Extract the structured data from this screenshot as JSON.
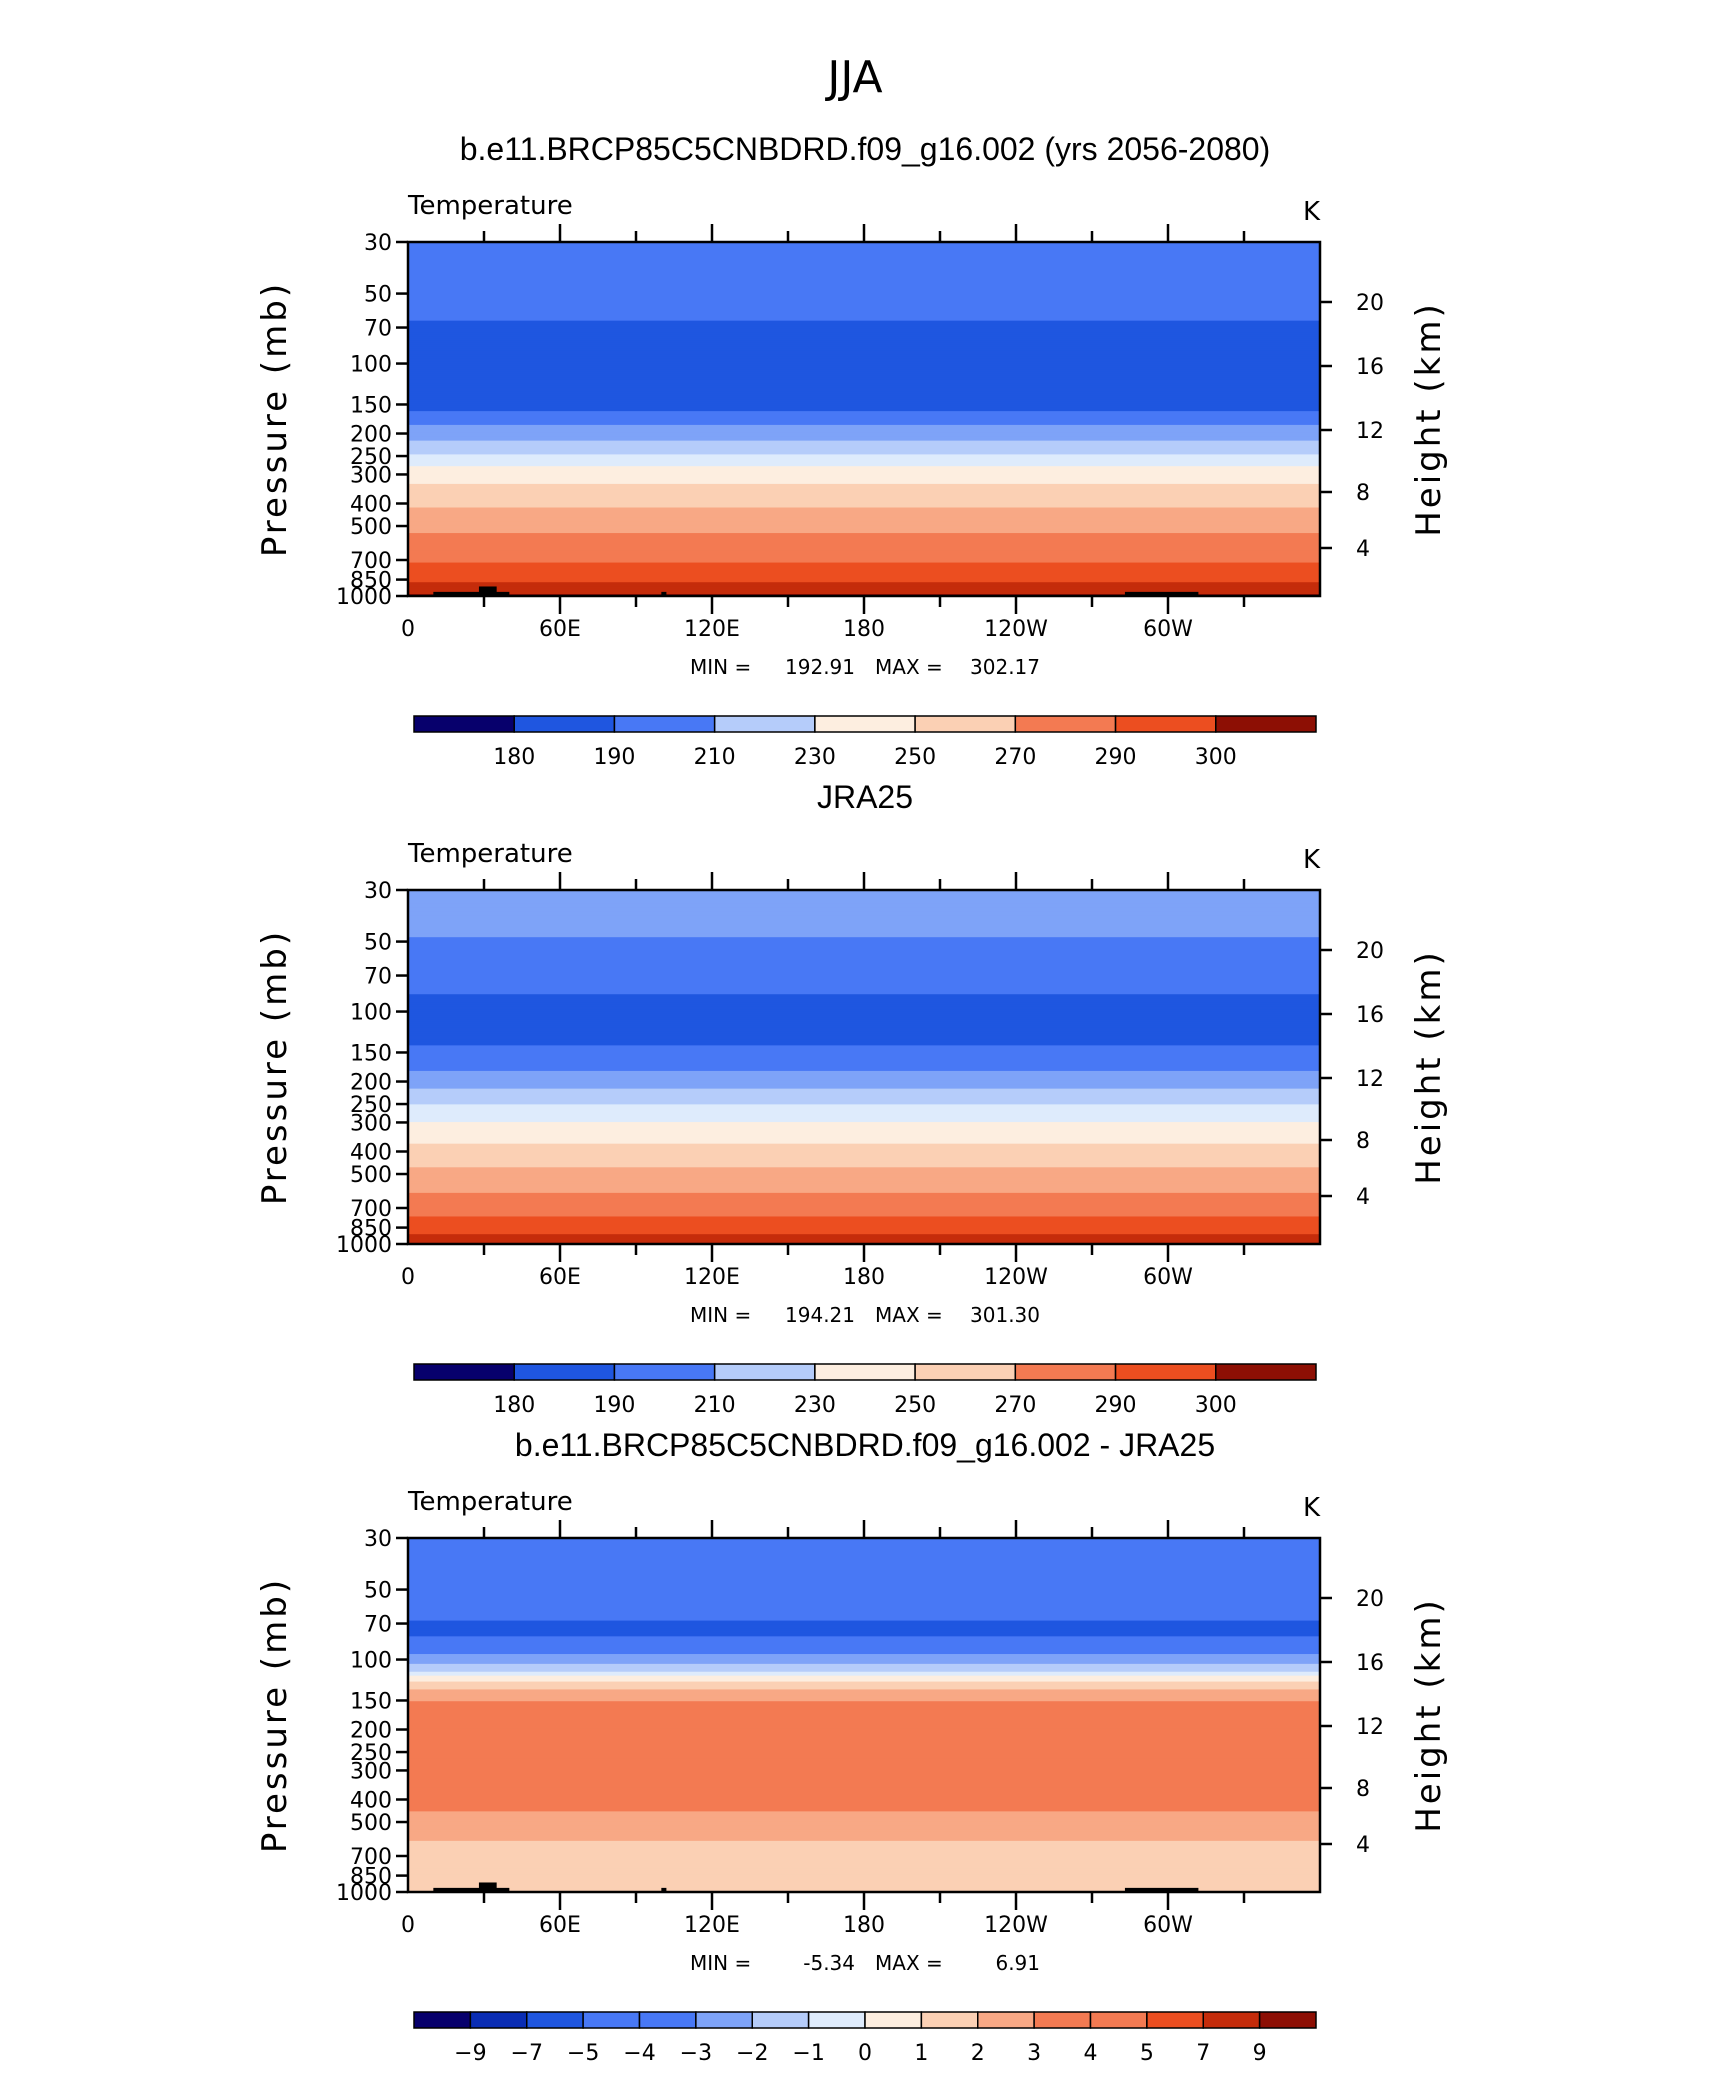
{
  "figure": {
    "title": "JJA"
  },
  "common": {
    "x_ticks": [
      "0",
      "60E",
      "120E",
      "180",
      "120W",
      "60W"
    ],
    "x_tick_values": [
      0,
      60,
      120,
      180,
      240,
      300
    ],
    "p_ticks": [
      "30",
      "50",
      "70",
      "100",
      "150",
      "200",
      "250",
      "300",
      "400",
      "500",
      "700",
      "850",
      "1000"
    ],
    "p_tick_values": [
      30,
      50,
      70,
      100,
      150,
      200,
      250,
      300,
      400,
      500,
      700,
      850,
      1000
    ],
    "h_ticks": [
      "20",
      "16",
      "12",
      "8",
      "4"
    ],
    "h_tick_values": [
      20,
      16,
      12,
      8,
      4
    ],
    "ylabel_left": "Pressure (mb)",
    "ylabel_right": "Height (km)",
    "palette": [
      "#07006c",
      "#0a2db4",
      "#1f56e0",
      "#4878f5",
      "#7ea3f8",
      "#b5ccfa",
      "#deebfc",
      "#fdeee0",
      "#fbd0b4",
      "#f8a885",
      "#f37a52",
      "#ec4e20",
      "#c52c0b",
      "#8d0f04"
    ]
  },
  "chart_data": [
    {
      "type": "heatmap",
      "title": "b.e11.BRCP85C5CNBDRD.f09_g16.002 (yrs 2056-2080)",
      "label_left": "Temperature",
      "label_right": "K",
      "min_label": "MIN =",
      "min_value": "192.91",
      "max_label": "MAX =",
      "max_value": "302.17",
      "xlim": [
        0,
        360
      ],
      "ylim": [
        1000,
        30
      ],
      "colorbar_labels": [
        "180",
        "190",
        "210",
        "230",
        "250",
        "270",
        "290",
        "300"
      ],
      "profile": [
        {
          "p": 30,
          "level": 3
        },
        {
          "p": 55,
          "level": 3
        },
        {
          "p": 65,
          "level": 2
        },
        {
          "p": 140,
          "level": 2
        },
        {
          "p": 160,
          "level": 3
        },
        {
          "p": 185,
          "level": 4
        },
        {
          "p": 215,
          "level": 5
        },
        {
          "p": 245,
          "level": 6
        },
        {
          "p": 275,
          "level": 7
        },
        {
          "p": 330,
          "level": 8
        },
        {
          "p": 420,
          "level": 9
        },
        {
          "p": 540,
          "level": 10
        },
        {
          "p": 720,
          "level": 11
        },
        {
          "p": 880,
          "level": 12
        },
        {
          "p": 980,
          "level": 13
        },
        {
          "p": 1000,
          "level": 13
        }
      ],
      "orography": true
    },
    {
      "type": "heatmap",
      "title": "JRA25",
      "label_left": "Temperature",
      "label_right": "K",
      "min_label": "MIN =",
      "min_value": "194.21",
      "max_label": "MAX =",
      "max_value": "301.30",
      "xlim": [
        0,
        360
      ],
      "ylim": [
        1000,
        30
      ],
      "colorbar_labels": [
        "180",
        "190",
        "210",
        "230",
        "250",
        "270",
        "290",
        "300"
      ],
      "profile": [
        {
          "p": 30,
          "level": 4
        },
        {
          "p": 42,
          "level": 4
        },
        {
          "p": 48,
          "level": 3
        },
        {
          "p": 78,
          "level": 3
        },
        {
          "p": 85,
          "level": 2
        },
        {
          "p": 125,
          "level": 2
        },
        {
          "p": 140,
          "level": 3
        },
        {
          "p": 180,
          "level": 4
        },
        {
          "p": 215,
          "level": 5
        },
        {
          "p": 250,
          "level": 6
        },
        {
          "p": 300,
          "level": 7
        },
        {
          "p": 370,
          "level": 8
        },
        {
          "p": 470,
          "level": 9
        },
        {
          "p": 600,
          "level": 10
        },
        {
          "p": 760,
          "level": 11
        },
        {
          "p": 900,
          "level": 12
        },
        {
          "p": 1000,
          "level": 12
        }
      ],
      "orography": false
    },
    {
      "type": "heatmap",
      "title": "b.e11.BRCP85C5CNBDRD.f09_g16.002 - JRA25",
      "label_left": "Temperature",
      "label_right": "K",
      "min_label": "MIN =",
      "min_value": "-5.34",
      "max_label": "MAX =",
      "max_value": "6.91",
      "xlim": [
        0,
        360
      ],
      "ylim": [
        1000,
        30
      ],
      "colorbar_labels": [
        "−9",
        "−7",
        "−5",
        "−4",
        "−3",
        "−2",
        "−1",
        "0",
        "1",
        "2",
        "3",
        "4",
        "5",
        "7",
        "9"
      ],
      "profile": [
        {
          "p": 30,
          "level": 3
        },
        {
          "p": 62,
          "level": 3
        },
        {
          "p": 68,
          "level": 2
        },
        {
          "p": 74,
          "level": 2
        },
        {
          "p": 80,
          "level": 3
        },
        {
          "p": 95,
          "level": 4
        },
        {
          "p": 105,
          "level": 5
        },
        {
          "p": 112,
          "level": 6
        },
        {
          "p": 118,
          "level": 7
        },
        {
          "p": 125,
          "level": 8
        },
        {
          "p": 135,
          "level": 9
        },
        {
          "p": 150,
          "level": 10
        },
        {
          "p": 410,
          "level": 10
        },
        {
          "p": 450,
          "level": 9
        },
        {
          "p": 600,
          "level": 8
        },
        {
          "p": 1000,
          "level": 8
        }
      ],
      "orography": true
    }
  ]
}
